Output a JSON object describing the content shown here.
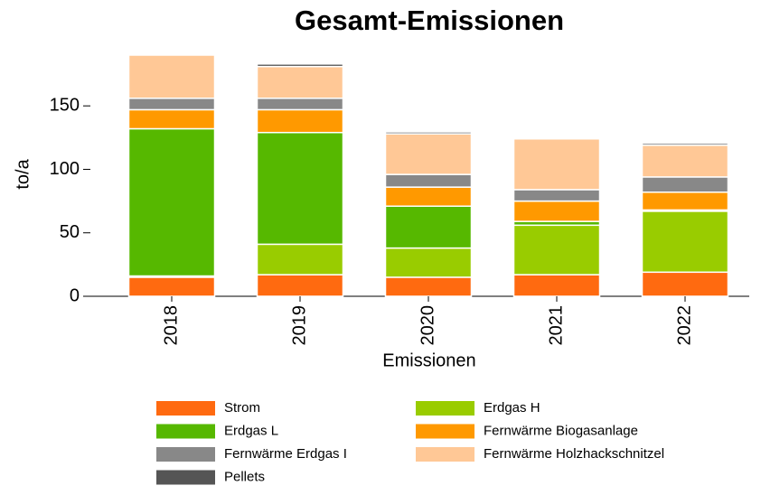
{
  "chart_data": {
    "type": "stacked_bar",
    "title": "Gesamt-Emissionen",
    "x_label": "Emissionen",
    "y_label": "to/a",
    "categories": [
      "2018",
      "2019",
      "2020",
      "2021",
      "2022"
    ],
    "series": [
      {
        "name": "Strom",
        "color": "#ff6a10",
        "values": [
          15,
          17,
          15,
          17,
          19
        ]
      },
      {
        "name": "Erdgas H",
        "color": "#99cc00",
        "values": [
          1,
          24,
          23,
          39,
          48
        ]
      },
      {
        "name": "Erdgas L",
        "color": "#56b800",
        "values": [
          116,
          88,
          33,
          3,
          1
        ]
      },
      {
        "name": "Fernwärme Biogasanlage",
        "color": "#ff9900",
        "values": [
          15,
          18,
          15,
          16,
          14
        ]
      },
      {
        "name": "Fernwärme Erdgas I",
        "color": "#888888",
        "values": [
          9,
          9,
          10,
          9,
          12
        ]
      },
      {
        "name": "Fernwärme Holzhackschnitzel",
        "color": "#ffc896",
        "values": [
          34,
          25,
          32,
          40,
          25
        ]
      },
      {
        "name": "Pellets",
        "color": "#555555",
        "values": [
          0,
          2,
          1.5,
          0,
          1.5
        ]
      }
    ],
    "ylim": [
      0,
      190
    ],
    "yticks": [
      0,
      50,
      100,
      150
    ]
  }
}
